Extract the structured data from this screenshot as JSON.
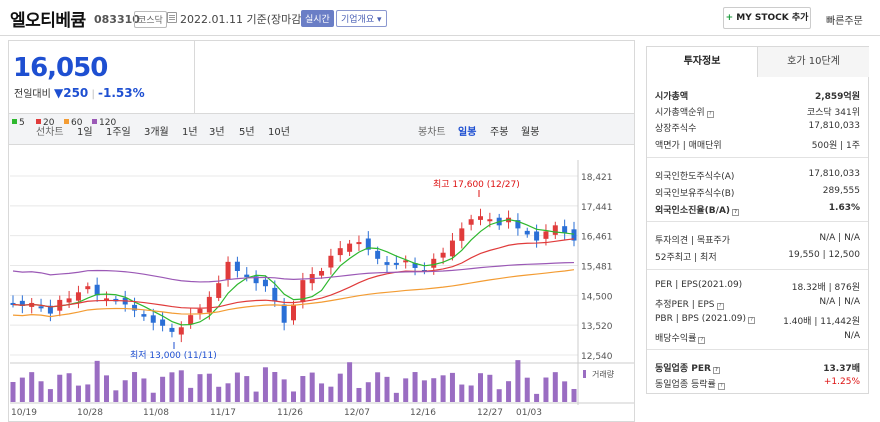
{
  "header": {
    "title": "엘오티베큠",
    "code": "083310",
    "market": "코스닥",
    "date": "2022.01.11 기준(장마감)",
    "realtime": "실시간",
    "company": "기업개요",
    "mystock": "MY STOCK 추가",
    "quick": "빠른주문"
  },
  "price": {
    "current": "16,050",
    "label": "전일대비",
    "change": "250",
    "rate": "-1.53%"
  },
  "toolbar": {
    "line_label": "선차트",
    "line": [
      "1일",
      "1주일",
      "3개월",
      "1년",
      "3년",
      "5년",
      "10년"
    ],
    "candle_label": "봉차트",
    "candle": [
      "일봉",
      "주봉",
      "월봉"
    ],
    "candle_active": "일봉"
  },
  "legend": [
    {
      "name": "5",
      "color": "#2eb82e"
    },
    {
      "name": "20",
      "color": "#e03b3b"
    },
    {
      "name": "60",
      "color": "#f39c33"
    },
    {
      "name": "120",
      "color": "#9b59b6"
    }
  ],
  "chart_data": {
    "type": "candlestick",
    "yticks": [
      12540,
      13520,
      14500,
      15481,
      16461,
      17441,
      18421
    ],
    "ytick_labels": [
      "12,540",
      "13,520",
      "14,500",
      "15,481",
      "16,461",
      "17,441",
      "18,421"
    ],
    "xlabels": [
      "10/19",
      "10/28",
      "11/08",
      "11/17",
      "11/26",
      "12/07",
      "12/16",
      "12/27",
      "01/03"
    ],
    "high_label": "최고 17,600 (12/27)",
    "low_label": "최저 13,000 (11/11)",
    "volume_label": "거래량",
    "colors": {
      "up": "#e03b3b",
      "down": "#2a6fd6"
    }
  },
  "sidebar": {
    "tab1": "투자정보",
    "tab2": "호가 10단계",
    "rows": [
      {
        "k": "시가총액",
        "v": "2,859억원",
        "bold": true
      },
      {
        "k": "시가총액순위",
        "v": "코스닥 341위"
      },
      {
        "k": "상장주식수",
        "v": "17,810,033"
      },
      {
        "k": "액면가 | 매매단위",
        "v": "500원 | 1주"
      },
      {
        "k": "외국인한도주식수(A)",
        "v": "17,810,033"
      },
      {
        "k": "외국인보유주식수(B)",
        "v": "289,555"
      },
      {
        "k": "외국인소진율(B/A)",
        "v": "1.63%",
        "bold": true
      },
      {
        "k": "투자의견 | 목표주가",
        "v": "N/A | N/A"
      },
      {
        "k": "52주최고 | 최저",
        "v": "19,550 | 12,500"
      },
      {
        "k": "PER | EPS(2021.09)",
        "v": "18.32배 | 876원"
      },
      {
        "k": "추정PER | EPS",
        "v": "N/A | N/A"
      },
      {
        "k": "PBR | BPS (2021.09)",
        "v": "1.40배 | 11,442원"
      },
      {
        "k": "배당수익률",
        "v": "N/A"
      },
      {
        "k": "동일업종 PER",
        "v": "13.37배",
        "bold": true
      },
      {
        "k": "동일업종 등락률",
        "v": "+1.25%",
        "red": true
      }
    ]
  }
}
